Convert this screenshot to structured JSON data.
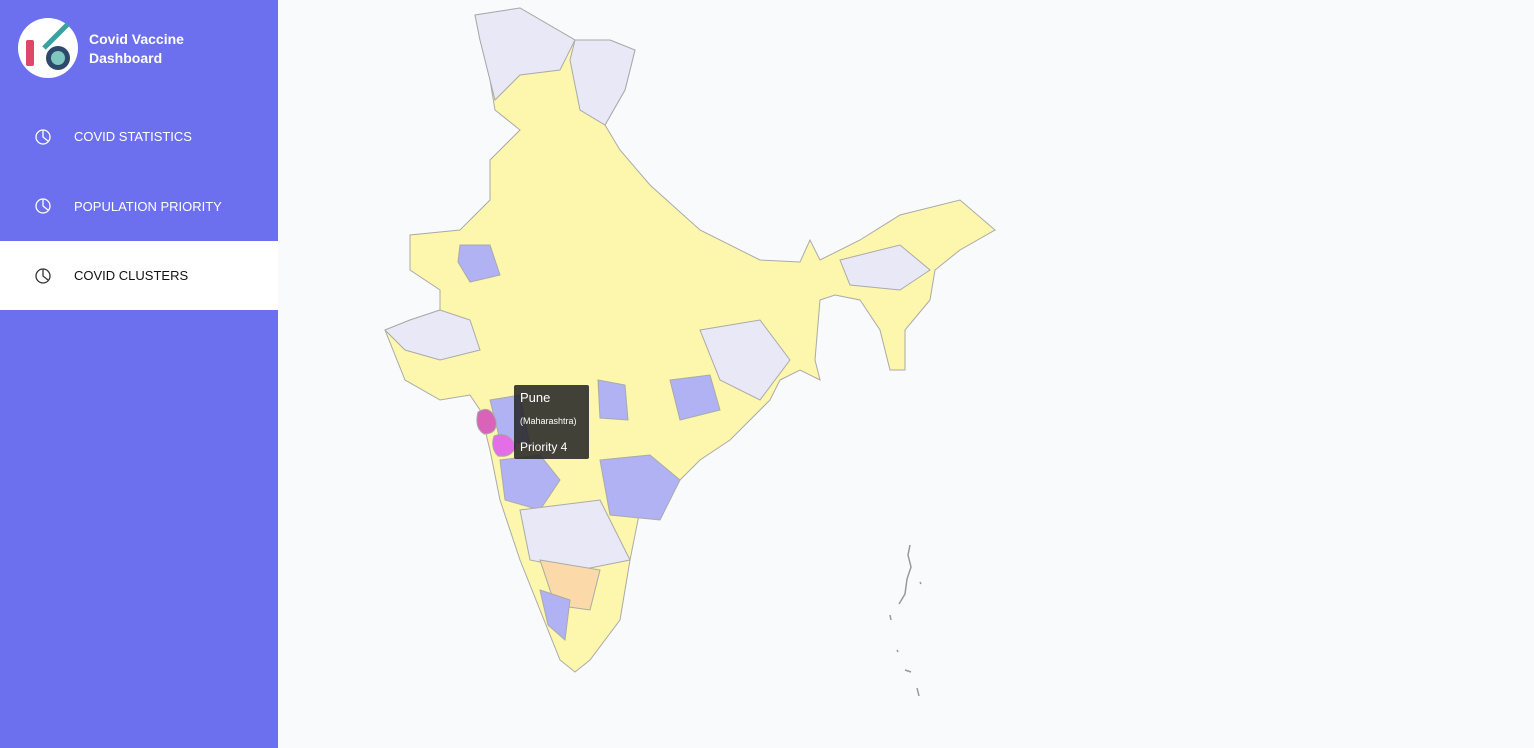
{
  "sidebar": {
    "title": "Covid Vaccine Dashboard",
    "nav": [
      "COVID STATISTICS",
      "POPULATION PRIORITY",
      "COVID CLUSTERS"
    ],
    "active": 2
  },
  "tooltip": {
    "district": "Pune",
    "state": "(Maharashtra)",
    "priority": "Priority 4"
  }
}
